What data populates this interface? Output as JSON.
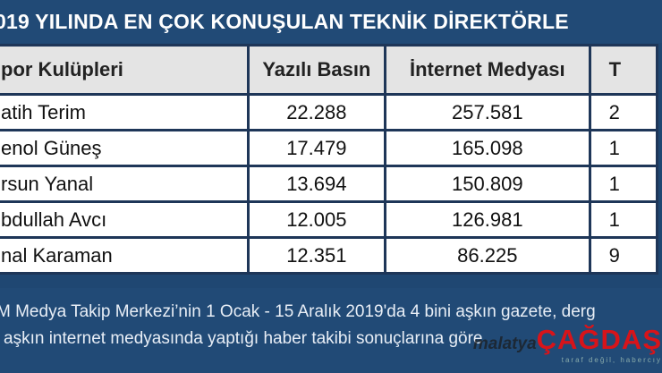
{
  "title": "019 YILINDA EN ÇOK KONUŞULAN TEKNİK DİREKTÖRLE",
  "table": {
    "headers": [
      "por Kulüpleri",
      "Yazılı Basın",
      "İnternet Medyası",
      "T"
    ],
    "rows": [
      [
        "atih Terim",
        "22.288",
        "257.581",
        "2"
      ],
      [
        "enol Güneş",
        "17.479",
        "165.098",
        "1"
      ],
      [
        "rsun Yanal",
        "13.694",
        "150.809",
        "1"
      ],
      [
        "bdullah Avcı",
        "12.005",
        "126.981",
        "1"
      ],
      [
        "nal Karaman",
        "12.351",
        "86.225",
        "9"
      ]
    ]
  },
  "footer": {
    "line1": "M Medya Takip Merkezi’nin 1 Ocak - 15 Aralık 2019'da 4 bini aşkın gazete, derg",
    "line2": "aşkın internet medyasında yaptığı haber takibi sonuçlarına göre"
  },
  "watermark": {
    "prefix": "malatya",
    "brand": "ÇAĞDAŞ",
    "slogan": "taraf değil, habercıy"
  }
}
